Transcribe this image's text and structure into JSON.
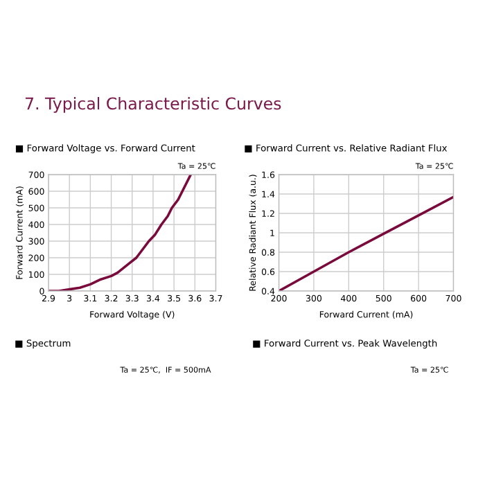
{
  "chart_data": [
    {
      "type": "other",
      "title": "7. Typical Characteristic Curves"
    },
    {
      "type": "line",
      "title": "■ Forward Voltage vs. Forward Current",
      "xlabel": "Forward Voltage (V)",
      "ylabel": "Forward Current (mA)",
      "annotations": [
        "Ta = 25℃"
      ],
      "x": [
        2.9,
        2.95,
        3.0,
        3.05,
        3.1,
        3.15,
        3.2,
        3.23,
        3.26,
        3.29,
        3.32,
        3.35,
        3.38,
        3.41,
        3.44,
        3.47,
        3.49,
        3.52,
        3.54,
        3.56,
        3.58
      ],
      "series": [
        {
          "color": "#7a0a3c",
          "values": [
            0,
            0,
            10,
            20,
            40,
            70,
            90,
            110,
            140,
            170,
            200,
            250,
            300,
            340,
            400,
            450,
            500,
            550,
            600,
            650,
            700
          ]
        }
      ],
      "xlim": [
        2.9,
        3.7
      ],
      "ylim": [
        0,
        700
      ],
      "xticks": [
        2.9,
        {
          "value": 3.0,
          "label": "3"
        },
        3.1,
        3.2,
        3.3,
        3.4,
        3.5,
        3.6,
        3.7
      ],
      "yticks": [
        0,
        100,
        200,
        300,
        400,
        500,
        600,
        700
      ],
      "grid": true,
      "line_style": "solid"
    },
    {
      "type": "line",
      "title": "■ Forward Current vs. Relative Radiant Flux",
      "xlabel": "Forward Current (mA)",
      "ylabel": "Relative Radiant Flux (a.u.)",
      "annotations": [
        "Ta = 25℃"
      ],
      "x": [
        200,
        300,
        400,
        500,
        600,
        700
      ],
      "series": [
        {
          "color": "#7a0a3c",
          "values": [
            0.4,
            0.6,
            0.8,
            0.99,
            1.18,
            1.37
          ]
        }
      ],
      "xlim": [
        200,
        700
      ],
      "ylim": [
        0.4,
        1.6
      ],
      "xticks": [
        200,
        300,
        400,
        500,
        600,
        700
      ],
      "yticks": [
        0.4,
        0.6,
        0.8,
        {
          "value": 1.0,
          "label": "1"
        },
        1.2,
        1.4,
        1.6
      ],
      "grid": true,
      "line_style": "solid"
    },
    {
      "type": "other",
      "title": "■ Spectrum",
      "annotations": [
        "Ta = 25℃,  IF = 500mA"
      ]
    },
    {
      "type": "other",
      "title": "■ Forward Current vs. Peak Wavelength",
      "annotations": [
        "Ta = 25℃"
      ]
    }
  ]
}
